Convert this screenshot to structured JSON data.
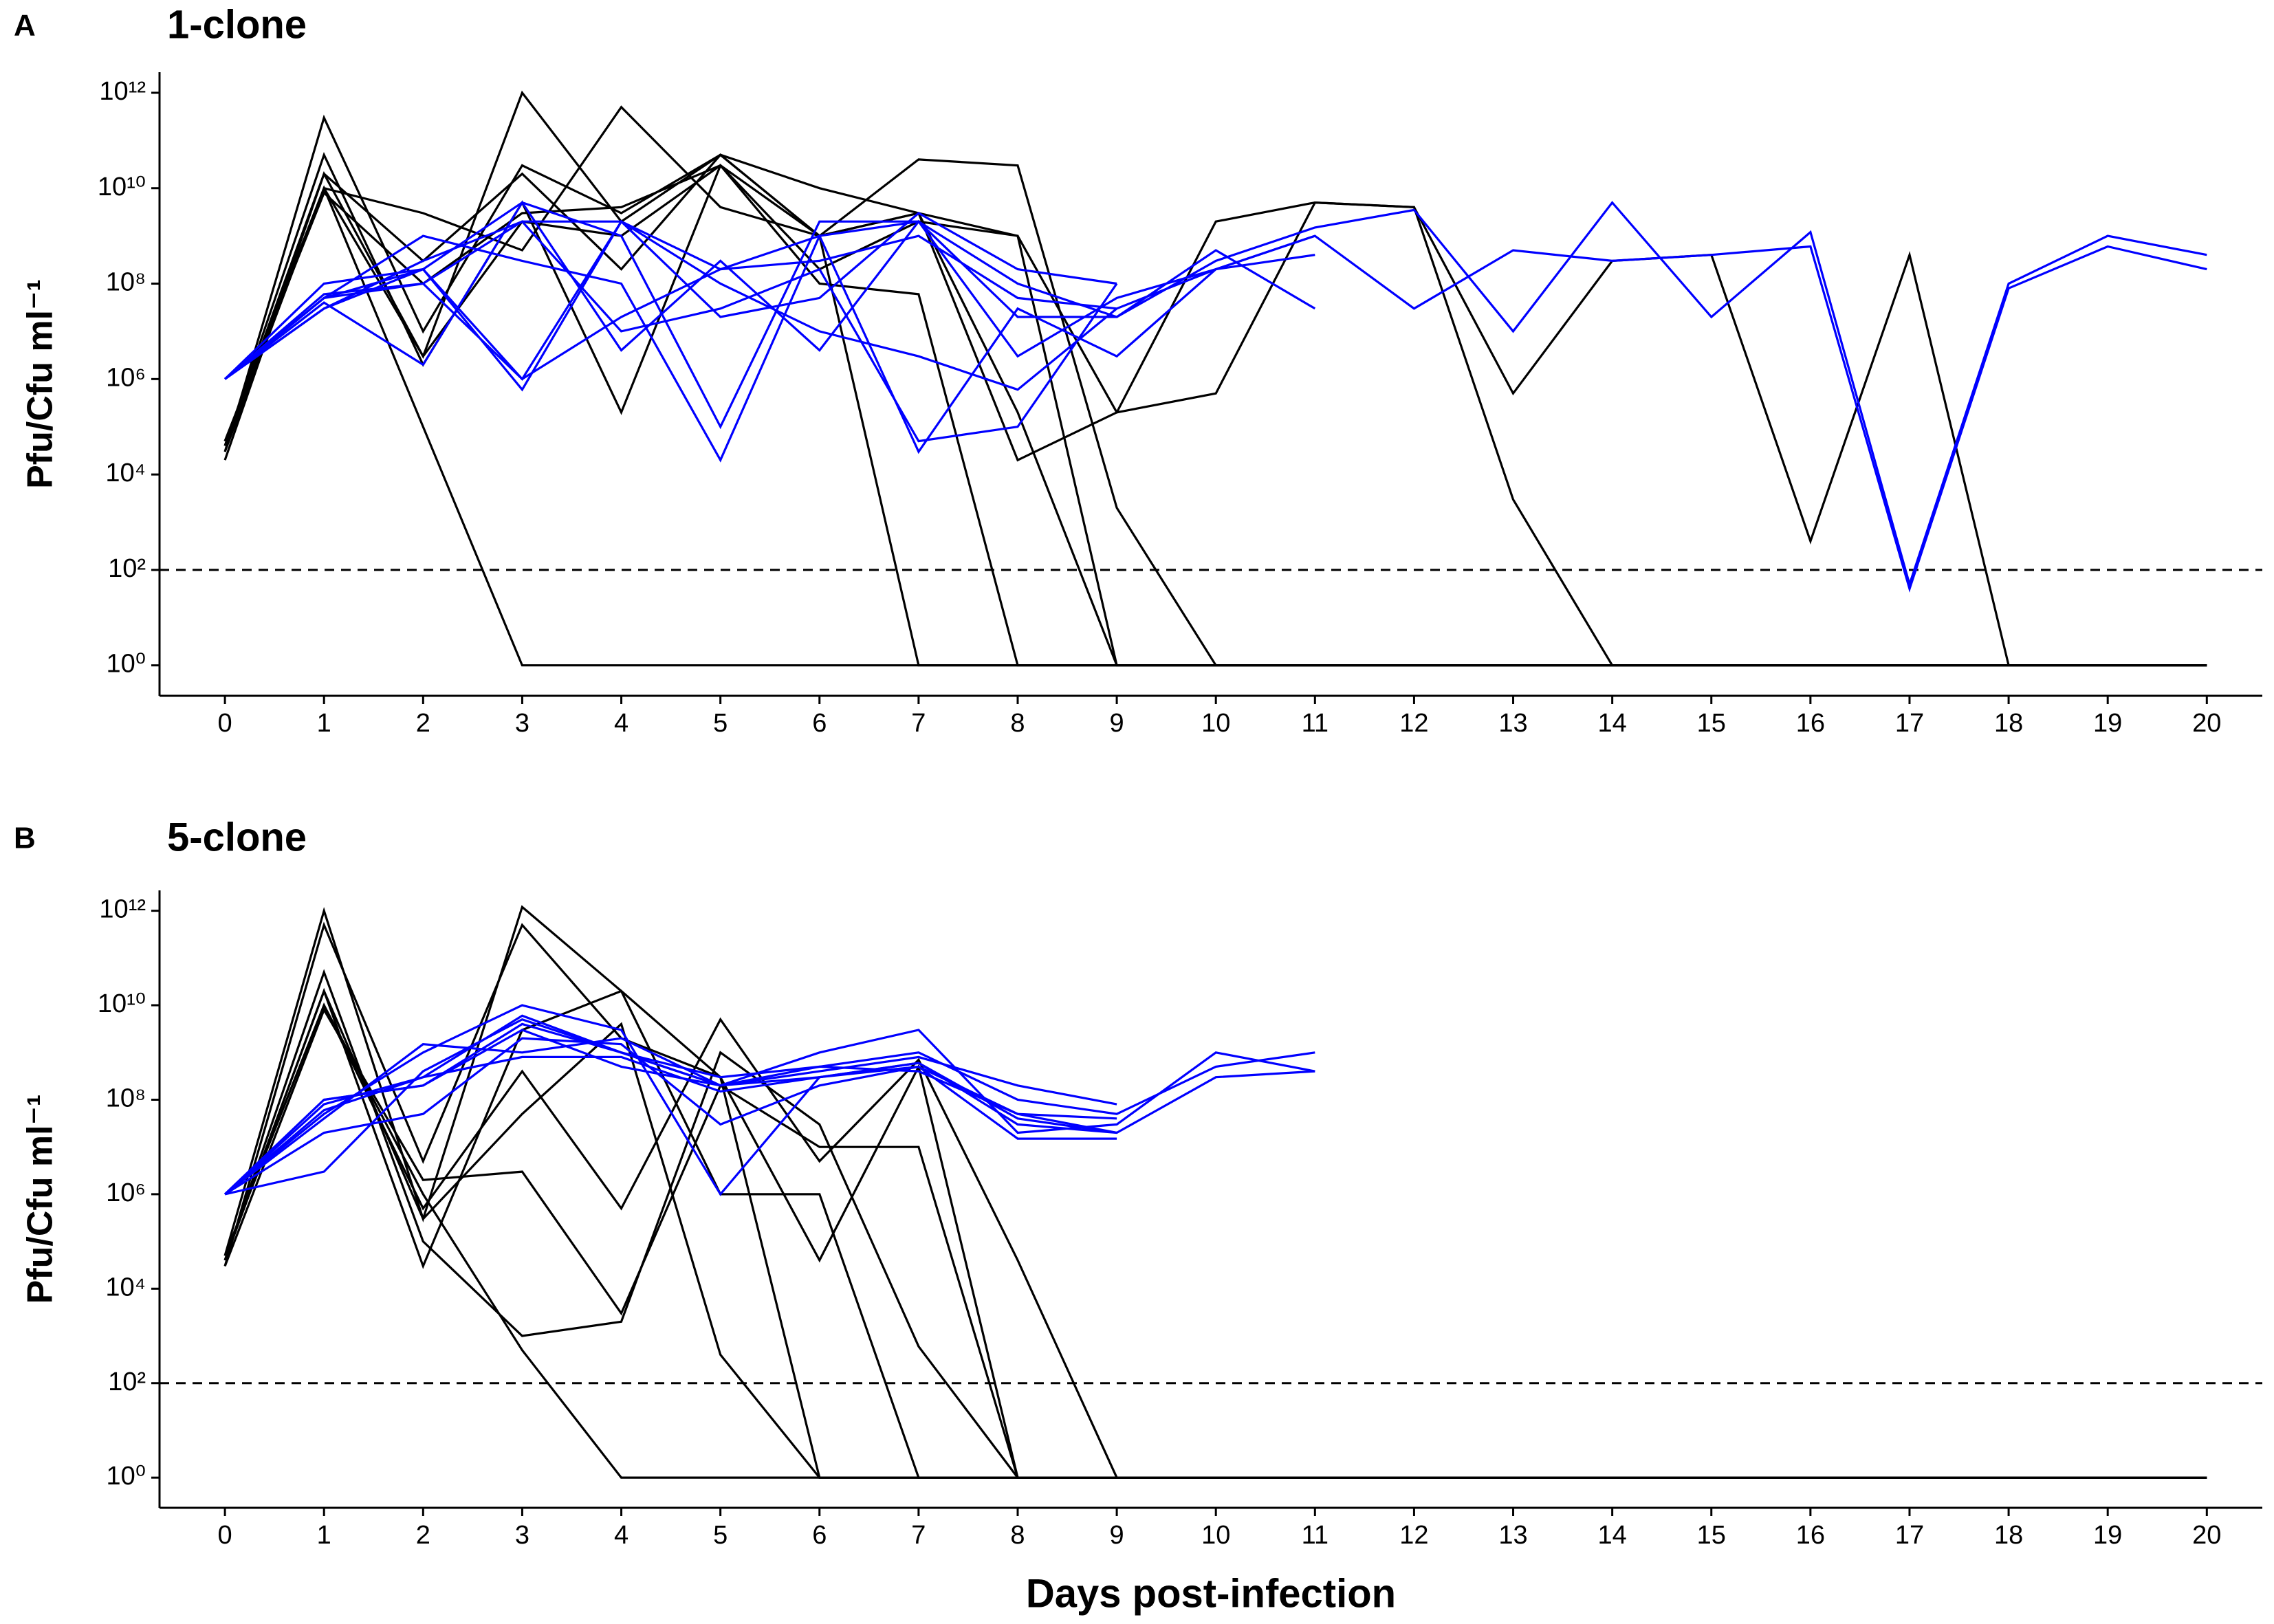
{
  "chart_data": [
    {
      "type": "line",
      "panel": "A",
      "title": "1-clone",
      "ylabel": "Pfu/Cfu ml⁻¹",
      "yscale": "log",
      "x": [
        0,
        1,
        2,
        3,
        4,
        5,
        6,
        7,
        8,
        9,
        10,
        11,
        12,
        13,
        14,
        15,
        16,
        17,
        18,
        19,
        20
      ],
      "xlim": [
        -0.66,
        20.56
      ],
      "xticks": [
        0,
        1,
        2,
        3,
        4,
        5,
        6,
        7,
        8,
        9,
        10,
        11,
        12,
        13,
        14,
        15,
        16,
        17,
        18,
        19,
        20
      ],
      "ylim": [
        0.23,
        2700000000000.0
      ],
      "yticks": [
        {
          "value": 1,
          "label": "10⁰"
        },
        {
          "value": 100,
          "label": "10²"
        },
        {
          "value": 10000.0,
          "label": "10⁴"
        },
        {
          "value": 1000000.0,
          "label": "10⁶"
        },
        {
          "value": 100000000.0,
          "label": "10⁸"
        },
        {
          "value": 10000000000.0,
          "label": "10¹⁰"
        },
        {
          "value": 1000000000000.0,
          "label": "10¹²"
        }
      ],
      "reference_line": 100,
      "series": [
        {
          "color": "#000000",
          "values": [
            30000.0,
            300000000000.0,
            10000000.0,
            30000000000.0,
            3000000000.0,
            50000000000.0,
            1000000000.0,
            3000000000.0,
            1000000000.0,
            200000.0,
            500000.0,
            5000000000.0,
            4000000000.0,
            500000.0,
            300000000.0,
            400000000.0,
            400,
            400000000.0,
            1,
            1,
            1
          ]
        },
        {
          "color": "#000000",
          "values": [
            50000.0,
            10000000000.0,
            100000.0,
            1,
            1,
            1,
            1,
            1,
            1,
            1,
            1,
            1,
            1,
            1,
            1,
            1,
            1,
            1,
            1,
            1,
            1
          ]
        },
        {
          "color": "#000000",
          "values": [
            20000.0,
            20000000000.0,
            3000000.0,
            1000000000000.0,
            2000000000.0,
            50000000000.0,
            10000000000.0,
            3000000000.0,
            200000.0,
            1,
            1,
            1,
            1,
            1,
            1,
            1,
            1,
            1,
            1,
            1,
            1
          ]
        },
        {
          "color": "#000000",
          "values": [
            40000.0,
            50000000000.0,
            2000000.0,
            5000000000.0,
            200000.0,
            30000000000.0,
            1000000000.0,
            40000000000.0,
            30000000000.0,
            2000.0,
            1,
            1,
            1,
            1,
            1,
            1,
            1,
            1,
            1,
            1,
            1
          ]
        },
        {
          "color": "#000000",
          "values": [
            30000.0,
            10000000000.0,
            3000000000.0,
            500000000.0,
            500000000000.0,
            4000000000.0,
            1000000000.0,
            1,
            1,
            1,
            1,
            1,
            1,
            1,
            1,
            1,
            1,
            1,
            1,
            1,
            1
          ]
        },
        {
          "color": "#000000",
          "values": [
            40000.0,
            20000000000.0,
            300000000.0,
            20000000000.0,
            200000000.0,
            50000000000.0,
            1000000000.0,
            3000000000.0,
            20000.0,
            200000.0,
            2000000000.0,
            5000000000.0,
            4000000000.0,
            3000.0,
            1,
            1,
            1,
            1,
            1,
            1,
            1
          ]
        },
        {
          "color": "#000000",
          "values": [
            50000.0,
            8000000000.0,
            100000000.0,
            3000000000.0,
            4000000000.0,
            30000000000.0,
            100000000.0,
            60000000.0,
            1,
            1,
            1,
            1,
            1,
            1,
            1,
            1,
            1,
            1,
            1,
            1,
            1
          ]
        },
        {
          "color": "#000000",
          "values": [
            40000.0,
            10000000000.0,
            3000000.0,
            2000000000.0,
            1000000000.0,
            30000000000.0,
            200000000.0,
            2000000000.0,
            1000000000.0,
            1,
            1,
            1,
            1,
            1,
            1,
            1,
            1,
            1,
            1,
            1,
            1
          ]
        },
        {
          "color": "#0000ff",
          "values": [
            1000000.0,
            50000000.0,
            200000000.0,
            5000000000.0,
            1000000000.0,
            100000.0,
            2000000000.0,
            2000000000.0,
            100000000.0,
            20000000.0,
            300000000.0,
            1500000000.0,
            3500000000.0,
            10000000.0,
            5000000000.0,
            20000000.0,
            1200000000.0,
            50,
            100000000.0,
            1000000000.0,
            400000000.0
          ]
        },
        {
          "color": "#0000ff",
          "values": [
            1000000.0,
            30000000.0,
            300000000.0,
            2000000000.0,
            2000000000.0,
            200000000.0,
            300000000.0,
            1000000000.0,
            50000000.0,
            30000000.0,
            200000000.0,
            1000000000.0,
            30000000.0,
            500000000.0,
            300000000.0,
            400000000.0,
            600000000.0,
            40,
            80000000.0,
            600000000.0,
            200000000.0
          ]
        },
        {
          "color": "#0000ff",
          "values": [
            1000000.0,
            100000000.0,
            200000000.0,
            1000000.0,
            20000000.0,
            200000000.0,
            1000000000.0,
            30000.0,
            30000000.0,
            3000000.0,
            200000000.0,
            1000000000.0,
            null,
            null,
            null,
            null,
            null,
            null,
            null,
            null,
            null
          ]
        },
        {
          "color": "#0000ff",
          "values": [
            1000000.0,
            50000000.0,
            1000000000.0,
            300000000.0,
            100000000.0,
            20000.0,
            1000000000.0,
            2000000000.0,
            3000000.0,
            50000000.0,
            200000000.0,
            400000000.0,
            null,
            null,
            null,
            null,
            null,
            null,
            null,
            null,
            null
          ]
        },
        {
          "color": "#0000ff",
          "values": [
            1000000.0,
            40000000.0,
            2000000.0,
            5000000000.0,
            4000000.0,
            300000000.0,
            4000000.0,
            2000000000.0,
            20000000.0,
            20000000.0,
            500000000.0,
            30000000.0,
            null,
            null,
            null,
            null,
            null,
            null,
            null,
            null,
            null
          ]
        },
        {
          "color": "#0000ff",
          "values": [
            1000000.0,
            60000000.0,
            100000000.0,
            2000000000.0,
            10000000.0,
            30000000.0,
            200000000.0,
            50000.0,
            100000.0,
            100000000.0,
            null,
            null,
            null,
            null,
            null,
            null,
            null,
            null,
            null,
            null,
            null
          ]
        },
        {
          "color": "#0000ff",
          "values": [
            1000000.0,
            30000000.0,
            200000000.0,
            600000.0,
            2000000000.0,
            100000000.0,
            10000000.0,
            3000000.0,
            600000.0,
            30000000.0,
            null,
            null,
            null,
            null,
            null,
            null,
            null,
            null,
            null,
            null,
            null
          ]
        },
        {
          "color": "#0000ff",
          "values": [
            1000000.0,
            50000000.0,
            100000000.0,
            1000000.0,
            2000000000.0,
            20000000.0,
            50000000.0,
            3000000000.0,
            200000000.0,
            100000000.0,
            null,
            null,
            null,
            null,
            null,
            null,
            null,
            null,
            null,
            null,
            null
          ]
        }
      ]
    },
    {
      "type": "line",
      "panel": "B",
      "title": "5-clone",
      "ylabel": "Pfu/Cfu ml⁻¹",
      "xlabel": "Days post-infection",
      "yscale": "log",
      "x": [
        0,
        1,
        2,
        3,
        4,
        5,
        6,
        7,
        8,
        9,
        10,
        11,
        12,
        13,
        14,
        15,
        16,
        17,
        18,
        19,
        20
      ],
      "xlim": [
        -0.66,
        20.56
      ],
      "xticks": [
        0,
        1,
        2,
        3,
        4,
        5,
        6,
        7,
        8,
        9,
        10,
        11,
        12,
        13,
        14,
        15,
        16,
        17,
        18,
        19,
        20
      ],
      "ylim": [
        0.23,
        2700000000000.0
      ],
      "yticks": [
        {
          "value": 1,
          "label": "10⁰"
        },
        {
          "value": 100,
          "label": "10²"
        },
        {
          "value": 10000.0,
          "label": "10⁴"
        },
        {
          "value": 1000000.0,
          "label": "10⁶"
        },
        {
          "value": 100000000.0,
          "label": "10⁸"
        },
        {
          "value": 10000000000.0,
          "label": "10¹⁰"
        },
        {
          "value": 1000000000000.0,
          "label": "10¹²"
        }
      ],
      "reference_line": 100,
      "series": [
        {
          "color": "#000000",
          "values": [
            50000.0,
            1000000000000.0,
            300000.0,
            1200000000000.0,
            20000000000.0,
            1000000.0,
            1000000.0,
            1,
            1,
            1,
            1,
            1,
            1,
            1,
            1,
            1,
            1,
            1,
            1,
            1,
            1
          ]
        },
        {
          "color": "#000000",
          "values": [
            30000.0,
            500000000000.0,
            5000000.0,
            500000000000.0,
            2000000000.0,
            300000000.0,
            1,
            1,
            1,
            1,
            1,
            1,
            1,
            1,
            1,
            1,
            1,
            1,
            1,
            1,
            1
          ]
        },
        {
          "color": "#000000",
          "values": [
            40000.0,
            20000000000.0,
            30000.0,
            3000000000.0,
            20000000000.0,
            300000000.0,
            40000.0,
            500000000.0,
            1,
            1,
            1,
            1,
            1,
            1,
            1,
            1,
            1,
            1,
            1,
            1,
            1
          ]
        },
        {
          "color": "#000000",
          "values": [
            50000.0,
            10000000000.0,
            500000.0,
            400000000.0,
            500000.0,
            5000000000.0,
            5000000.0,
            700000000.0,
            40000.0,
            1,
            1,
            1,
            1,
            1,
            1,
            1,
            1,
            1,
            1,
            1,
            1
          ]
        },
        {
          "color": "#000000",
          "values": [
            30000.0,
            8000000000.0,
            2000000.0,
            3000000.0,
            3000.0,
            200000000.0,
            10000000.0,
            10000000.0,
            1,
            1,
            1,
            1,
            1,
            1,
            1,
            1,
            1,
            1,
            1,
            1,
            1
          ]
        },
        {
          "color": "#000000",
          "values": [
            40000.0,
            50000000000.0,
            100000.0,
            1000.0,
            2000.0,
            1000000000.0,
            30000000.0,
            600,
            1,
            1,
            1,
            1,
            1,
            1,
            1,
            1,
            1,
            1,
            1,
            1,
            1
          ]
        },
        {
          "color": "#000000",
          "values": [
            50000.0,
            10000000000.0,
            1000000.0,
            500,
            1,
            1,
            1,
            1,
            1,
            1,
            1,
            1,
            1,
            1,
            1,
            1,
            1,
            1,
            1,
            1,
            1
          ]
        },
        {
          "color": "#000000",
          "values": [
            40000.0,
            20000000000.0,
            300000.0,
            50000000.0,
            4000000000.0,
            400,
            1,
            1,
            1,
            1,
            1,
            1,
            1,
            1,
            1,
            1,
            1,
            1,
            1,
            1,
            1
          ]
        },
        {
          "color": "#0000ff",
          "values": [
            1000000.0,
            100000000.0,
            200000000.0,
            4000000000.0,
            1000000000.0,
            200000000.0,
            500000000.0,
            1000000000.0,
            100000000.0,
            50000000.0,
            500000000.0,
            1000000000.0,
            null,
            null,
            null,
            null,
            null,
            null,
            null,
            null,
            null
          ]
        },
        {
          "color": "#0000ff",
          "values": [
            1000000.0,
            50000000.0,
            1000000000.0,
            10000000000.0,
            3000000000.0,
            1000000.0,
            300000000.0,
            600000000.0,
            40000000.0,
            20000000.0,
            300000000.0,
            400000000.0,
            null,
            null,
            null,
            null,
            null,
            null,
            null,
            null,
            null
          ]
        },
        {
          "color": "#0000ff",
          "values": [
            1000000.0,
            3000000.0,
            400000000.0,
            5000000000.0,
            1000000000.0,
            200000000.0,
            1000000000.0,
            3000000000.0,
            20000000.0,
            30000000.0,
            1000000000.0,
            400000000.0,
            null,
            null,
            null,
            null,
            null,
            null,
            null,
            null,
            null
          ]
        },
        {
          "color": "#0000ff",
          "values": [
            1000000.0,
            20000000.0,
            50000000.0,
            2000000000.0,
            1500000000.0,
            30000000.0,
            200000000.0,
            500000000.0,
            50000000.0,
            20000000.0,
            null,
            null,
            null,
            null,
            null,
            null,
            null,
            null,
            null,
            null,
            null
          ]
        },
        {
          "color": "#0000ff",
          "values": [
            1000000.0,
            100000000.0,
            200000000.0,
            3000000000.0,
            500000000.0,
            200000000.0,
            400000000.0,
            800000000.0,
            200000000.0,
            80000000.0,
            null,
            null,
            null,
            null,
            null,
            null,
            null,
            null,
            null,
            null,
            null
          ]
        },
        {
          "color": "#0000ff",
          "values": [
            1000000.0,
            60000000.0,
            300000000.0,
            800000000.0,
            800000000.0,
            150000000.0,
            300000000.0,
            500000000.0,
            15000000.0,
            15000000.0,
            null,
            null,
            null,
            null,
            null,
            null,
            null,
            null,
            null,
            null,
            null
          ]
        },
        {
          "color": "#0000ff",
          "values": [
            1000000.0,
            40000000.0,
            1500000000.0,
            1000000000.0,
            2000000000.0,
            200000000.0,
            300000000.0,
            600000000.0,
            30000000.0,
            20000000.0,
            null,
            null,
            null,
            null,
            null,
            null,
            null,
            null,
            null,
            null,
            null
          ]
        },
        {
          "color": "#0000ff",
          "values": [
            1000000.0,
            80000000.0,
            300000000.0,
            6000000000.0,
            1000000000.0,
            300000000.0,
            500000000.0,
            400000000.0,
            50000000.0,
            40000000.0,
            null,
            null,
            null,
            null,
            null,
            null,
            null,
            null,
            null,
            null,
            null
          ]
        }
      ]
    }
  ]
}
